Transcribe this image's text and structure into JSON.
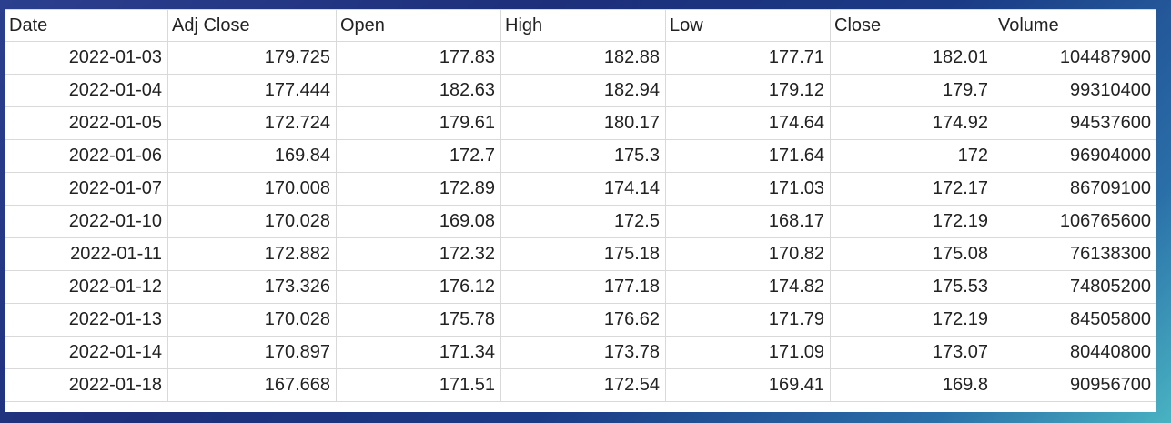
{
  "table": {
    "columns": [
      "Date",
      "Adj Close",
      "Open",
      "High",
      "Low",
      "Close",
      "Volume"
    ],
    "rows": [
      [
        "2022-01-03",
        "179.725",
        "177.83",
        "182.88",
        "177.71",
        "182.01",
        "104487900"
      ],
      [
        "2022-01-04",
        "177.444",
        "182.63",
        "182.94",
        "179.12",
        "179.7",
        "99310400"
      ],
      [
        "2022-01-05",
        "172.724",
        "179.61",
        "180.17",
        "174.64",
        "174.92",
        "94537600"
      ],
      [
        "2022-01-06",
        "169.84",
        "172.7",
        "175.3",
        "171.64",
        "172",
        "96904000"
      ],
      [
        "2022-01-07",
        "170.008",
        "172.89",
        "174.14",
        "171.03",
        "172.17",
        "86709100"
      ],
      [
        "2022-01-10",
        "170.028",
        "169.08",
        "172.5",
        "168.17",
        "172.19",
        "106765600"
      ],
      [
        "2022-01-11",
        "172.882",
        "172.32",
        "175.18",
        "170.82",
        "175.08",
        "76138300"
      ],
      [
        "2022-01-12",
        "173.326",
        "176.12",
        "177.18",
        "174.82",
        "175.53",
        "74805200"
      ],
      [
        "2022-01-13",
        "170.028",
        "175.78",
        "176.62",
        "171.79",
        "172.19",
        "84505800"
      ],
      [
        "2022-01-14",
        "170.897",
        "171.34",
        "173.78",
        "171.09",
        "173.07",
        "80440800"
      ],
      [
        "2022-01-18",
        "167.668",
        "171.51",
        "172.54",
        "169.41",
        "169.8",
        "90956700"
      ]
    ]
  }
}
